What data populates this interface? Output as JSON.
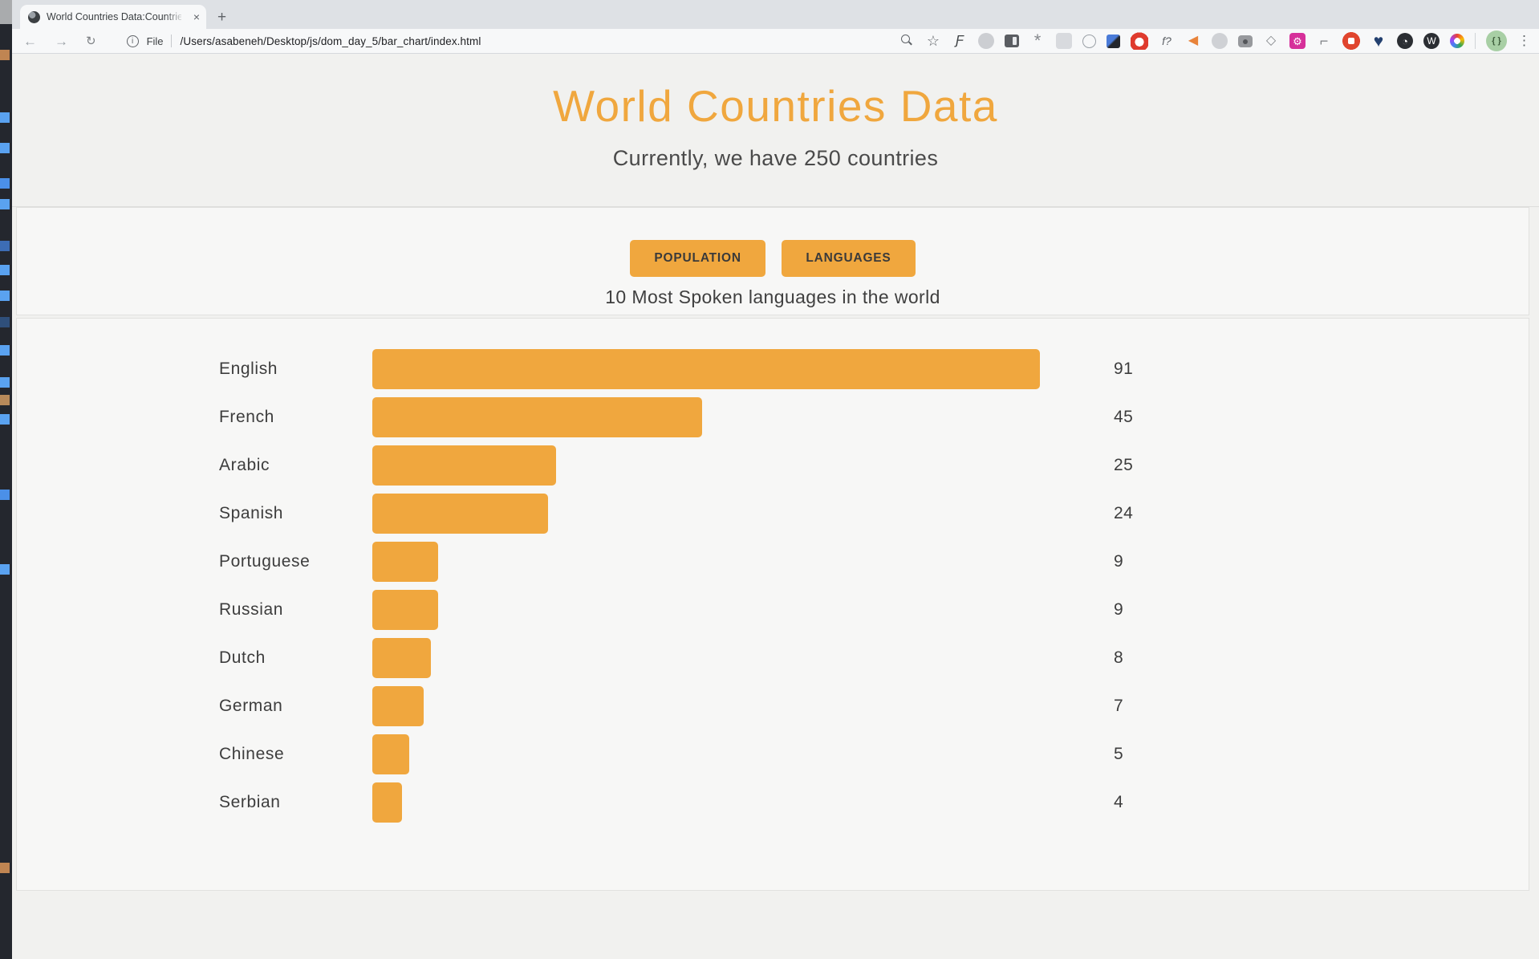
{
  "browser": {
    "tab_title": "World Countries Data:Countrie",
    "close_glyph": "×",
    "new_tab_glyph": "+",
    "nav": {
      "back": "←",
      "forward": "→",
      "reload": "↻",
      "info": "i",
      "file_label": "File",
      "url": "/Users/asabeneh/Desktop/js/dom_day_5/bar_chart/index.html"
    },
    "extension_icons": [
      {
        "name": "page-zoom-icon",
        "cls": "mag"
      },
      {
        "name": "bookmark-star-icon",
        "glyph": "☆",
        "fg": "#5f6368",
        "size": 18
      },
      {
        "name": "ext-cursive-f-icon",
        "glyph": "Ƒ",
        "fg": "#3c4043",
        "italic": true,
        "size": 16
      },
      {
        "name": "ext-faded-circle-icon",
        "bg": "#ccced2",
        "shape": "circle"
      },
      {
        "name": "ext-sidebar-icon",
        "cls": "sidebar-ic"
      },
      {
        "name": "ext-bug-icon",
        "glyph": "*",
        "fg": "#85888c",
        "size": 22
      },
      {
        "name": "ext-faded-square-icon",
        "bg": "#d8dade",
        "shape": "square"
      },
      {
        "name": "ext-dots-circle-icon",
        "cls": "outline"
      },
      {
        "name": "ext-eyedropper-icon",
        "cls": "dropper"
      },
      {
        "name": "ext-stop-hand-icon",
        "cls": "red-blob"
      },
      {
        "name": "ext-fq-icon",
        "glyph": "f?",
        "fg": "#5f6368",
        "italic": true,
        "size": 14
      },
      {
        "name": "ext-megaphone-icon",
        "glyph": "◀",
        "fg": "#e8833a",
        "size": 16
      },
      {
        "name": "ext-faded-circle2-icon",
        "bg": "#cfd1d5",
        "shape": "circle"
      },
      {
        "name": "ext-camera-icon",
        "cls": "camera"
      },
      {
        "name": "ext-diamond-icon",
        "glyph": "◇",
        "fg": "#85888c",
        "size": 16
      },
      {
        "name": "ext-gear-square-icon",
        "glyph": "⚙",
        "fg": "#ffffff",
        "bg": "#d6309a",
        "shape": "square",
        "size": 13
      },
      {
        "name": "ext-pipe-icon",
        "glyph": "⌐",
        "fg": "#7d8085",
        "size": 18
      },
      {
        "name": "ext-pocket-icon",
        "cls": "red-blob2"
      },
      {
        "name": "ext-heart-search-icon",
        "glyph": "♥",
        "fg": "#23406f",
        "size": 21
      },
      {
        "name": "ext-clock-circle-icon",
        "glyph": "◔",
        "fg": "#ffffff",
        "bg": "#2b2e33",
        "shape": "circle",
        "size": 13
      },
      {
        "name": "ext-w-circle-icon",
        "glyph": "W",
        "fg": "#ffffff",
        "bg": "#2b2e33",
        "shape": "circle",
        "size": 12
      },
      {
        "name": "ext-color-ring-icon",
        "cls": "color-ring"
      }
    ],
    "avatar_glyph": "{ }",
    "menu_glyph": "⋮"
  },
  "page": {
    "title": "World Countries Data",
    "subtitle": "Currently, we have 250 countries",
    "buttons": [
      {
        "label": "POPULATION"
      },
      {
        "label": "LANGUAGES"
      }
    ],
    "chart_heading": "10 Most Spoken languages in the world"
  },
  "chart_data": {
    "type": "bar",
    "orientation": "horizontal",
    "title": "10 Most Spoken languages in the world",
    "categories": [
      "English",
      "French",
      "Arabic",
      "Spanish",
      "Portuguese",
      "Russian",
      "Dutch",
      "German",
      "Chinese",
      "Serbian"
    ],
    "values": [
      91,
      45,
      25,
      24,
      9,
      9,
      8,
      7,
      5,
      4
    ],
    "max_value": 91,
    "bar_color": "#f0a73e",
    "value_label_position": "right",
    "grid": false,
    "legend": false
  },
  "colors": {
    "accent_orange": "#f0a73e",
    "page_background": "#f1f1ef",
    "card_background": "#f7f7f6",
    "text_dark": "#3d3d3d",
    "chrome_tabstrip": "#dee1e5",
    "chrome_toolbar": "#f7f8f9"
  }
}
